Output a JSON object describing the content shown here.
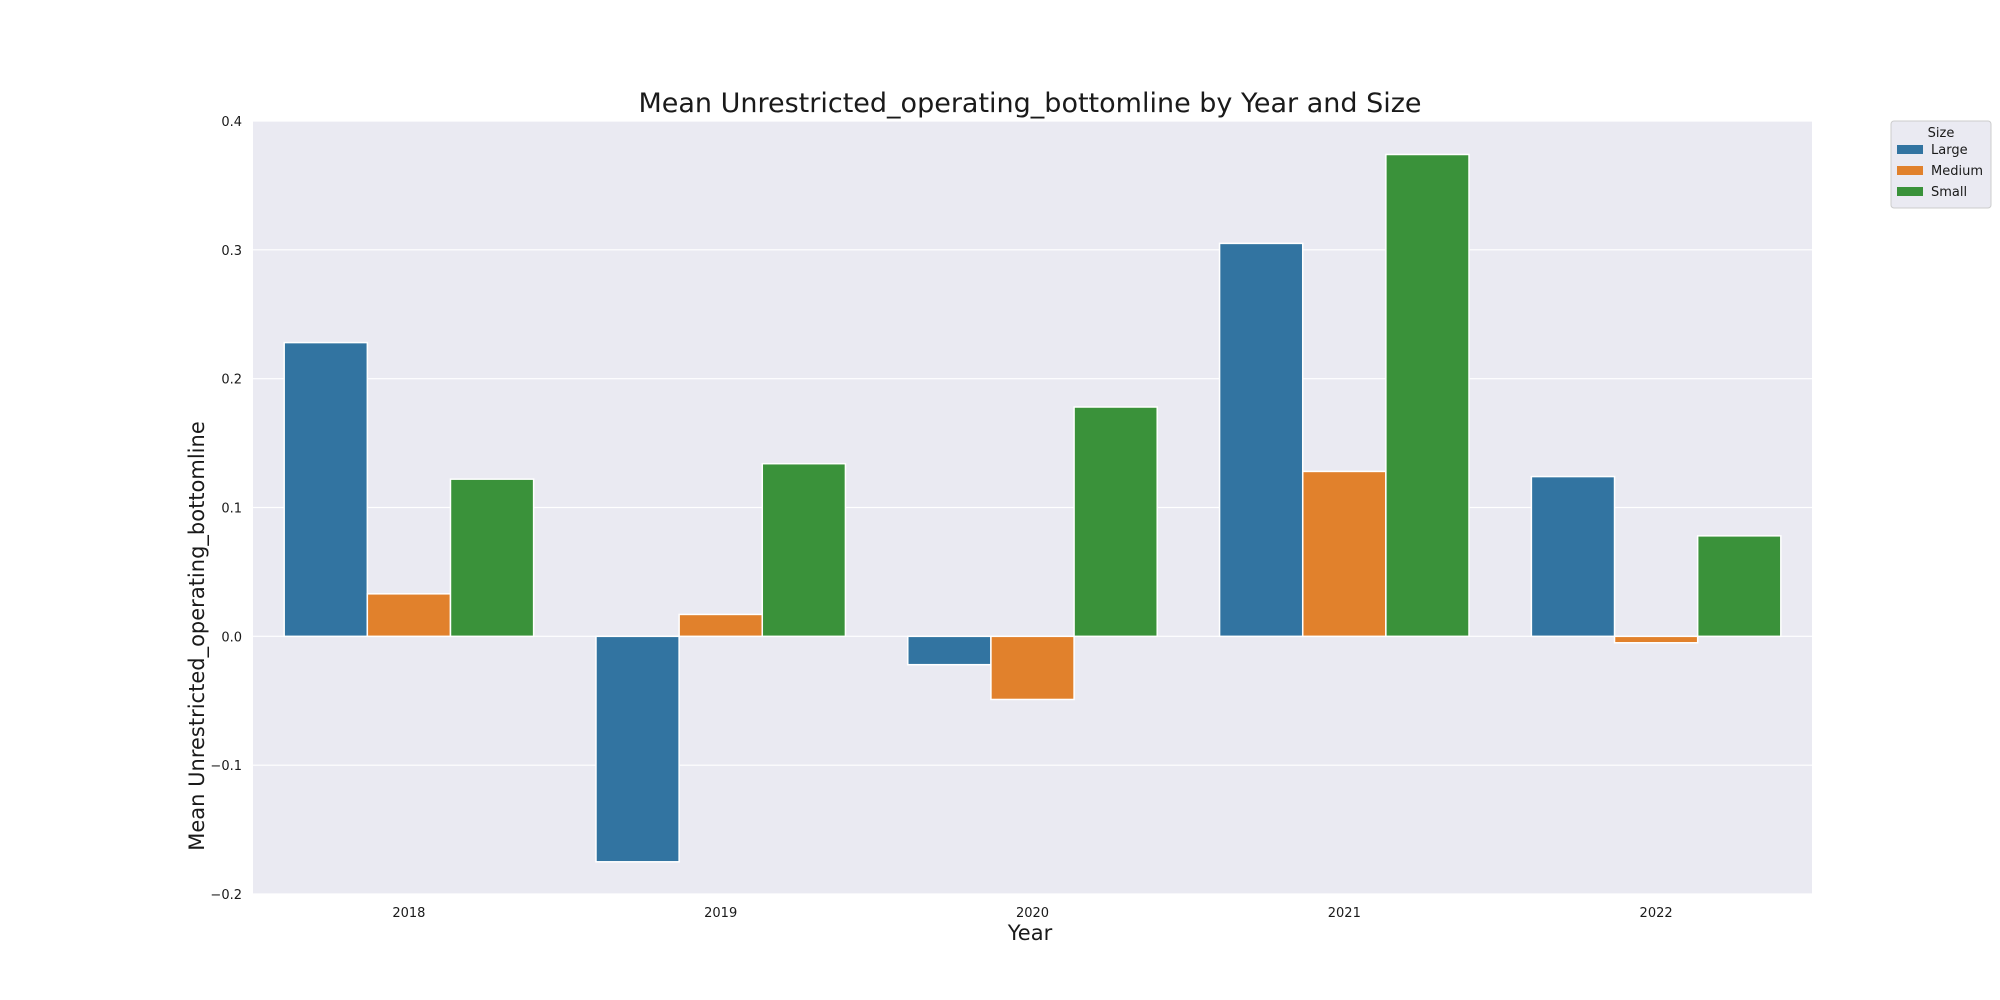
{
  "chart_data": {
    "type": "bar",
    "title": "Mean Unrestricted_operating_bottomline by Year and Size",
    "xlabel": "Year",
    "ylabel": "Mean Unrestricted_operating_bottomline",
    "categories": [
      "2018",
      "2019",
      "2020",
      "2021",
      "2022"
    ],
    "series": [
      {
        "name": "Large",
        "color": "#3274a1",
        "values": [
          0.228,
          -0.175,
          -0.022,
          0.305,
          0.124
        ]
      },
      {
        "name": "Medium",
        "color": "#e1812c",
        "values": [
          0.033,
          0.017,
          -0.049,
          0.128,
          -0.005
        ]
      },
      {
        "name": "Small",
        "color": "#3a923a",
        "values": [
          0.122,
          0.134,
          0.178,
          0.374,
          0.078
        ]
      }
    ],
    "ylim": [
      -0.2,
      0.4
    ],
    "yticks": [
      "−0.2",
      "−0.1",
      "0.0",
      "0.1",
      "0.2",
      "0.3",
      "0.4"
    ],
    "grid": true,
    "background": "#eaeaf2",
    "legend": {
      "title": "Size",
      "placement": "outside-top-right"
    }
  }
}
